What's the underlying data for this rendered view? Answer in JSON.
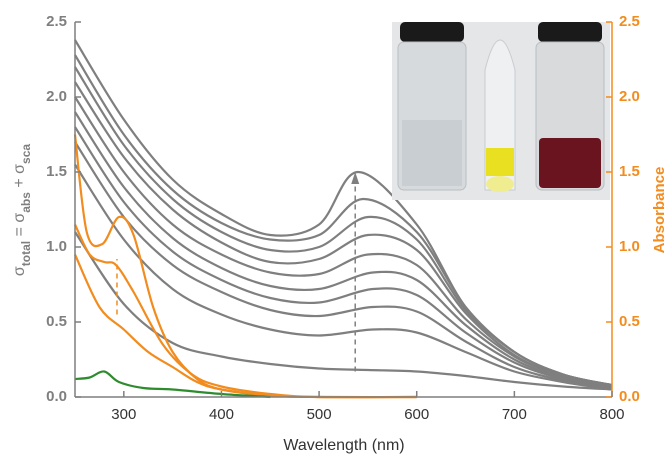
{
  "chart_data": {
    "type": "line",
    "x_label": "Wavelength (nm)",
    "y_label": [
      "σ",
      "total",
      " = σ",
      "abs",
      " + σ",
      "sca"
    ],
    "y2_label": "Absorbance",
    "xlim": [
      250,
      800
    ],
    "xticks": [
      300,
      400,
      500,
      600,
      700,
      800
    ],
    "ylim": [
      0,
      2.5
    ],
    "yticks": [
      {
        "value": 0,
        "label": "0.0"
      },
      {
        "value": 0.5,
        "label": "0.5"
      },
      {
        "value": 1,
        "label": "1.0"
      },
      {
        "value": 1.5,
        "label": "1.5"
      },
      {
        "value": 2,
        "label": "2.0"
      },
      {
        "value": 2.5,
        "label": "2.5"
      }
    ],
    "y2lim": [
      0,
      2.5
    ],
    "y2ticks": [
      {
        "value": 0,
        "label": "0.0"
      },
      {
        "value": 0.5,
        "label": "0.5"
      },
      {
        "value": 1,
        "label": "1.0"
      },
      {
        "value": 1.5,
        "label": "1.5"
      },
      {
        "value": 2,
        "label": "2.0"
      },
      {
        "value": 2.5,
        "label": "2.5"
      }
    ],
    "axis_color": "#7f7f7f",
    "y2_color": "#f28c1e",
    "series": [
      {
        "color": "#7f7f7f",
        "x": [
          250,
          300,
          350,
          400,
          450,
          500,
          540,
          600,
          650,
          700,
          750,
          800
        ],
        "values": [
          2.38,
          1.85,
          1.45,
          1.22,
          1.08,
          1.15,
          1.5,
          1.15,
          0.6,
          0.3,
          0.15,
          0.08
        ]
      },
      {
        "color": "#7f7f7f",
        "x": [
          250,
          300,
          350,
          400,
          450,
          500,
          545,
          600,
          650,
          700,
          750,
          800
        ],
        "values": [
          2.28,
          1.75,
          1.38,
          1.16,
          1.05,
          1.08,
          1.32,
          1.1,
          0.6,
          0.3,
          0.15,
          0.08
        ]
      },
      {
        "color": "#7f7f7f",
        "x": [
          250,
          300,
          350,
          400,
          450,
          500,
          550,
          600,
          650,
          700,
          750,
          800
        ],
        "values": [
          2.2,
          1.68,
          1.32,
          1.1,
          0.98,
          1.0,
          1.2,
          1.05,
          0.58,
          0.3,
          0.15,
          0.08
        ]
      },
      {
        "color": "#7f7f7f",
        "x": [
          250,
          300,
          350,
          400,
          450,
          500,
          550,
          600,
          650,
          700,
          750,
          800
        ],
        "values": [
          2.1,
          1.6,
          1.25,
          1.03,
          0.9,
          0.92,
          1.08,
          0.98,
          0.56,
          0.28,
          0.14,
          0.08
        ]
      },
      {
        "color": "#7f7f7f",
        "x": [
          250,
          300,
          350,
          400,
          450,
          500,
          550,
          600,
          650,
          700,
          750,
          800
        ],
        "values": [
          2.0,
          1.5,
          1.15,
          0.95,
          0.83,
          0.82,
          0.95,
          0.88,
          0.52,
          0.27,
          0.14,
          0.07
        ]
      },
      {
        "color": "#7f7f7f",
        "x": [
          250,
          300,
          350,
          400,
          450,
          500,
          555,
          600,
          650,
          700,
          750,
          800
        ],
        "values": [
          1.9,
          1.4,
          1.06,
          0.86,
          0.74,
          0.72,
          0.83,
          0.78,
          0.48,
          0.25,
          0.13,
          0.07
        ]
      },
      {
        "color": "#7f7f7f",
        "x": [
          250,
          300,
          350,
          400,
          450,
          500,
          555,
          600,
          650,
          700,
          750,
          800
        ],
        "values": [
          1.8,
          1.3,
          0.97,
          0.78,
          0.66,
          0.63,
          0.72,
          0.68,
          0.43,
          0.23,
          0.12,
          0.06
        ]
      },
      {
        "color": "#7f7f7f",
        "x": [
          250,
          300,
          350,
          400,
          450,
          500,
          555,
          600,
          650,
          700,
          750,
          800
        ],
        "values": [
          1.7,
          1.2,
          0.88,
          0.7,
          0.58,
          0.54,
          0.6,
          0.57,
          0.37,
          0.2,
          0.11,
          0.06
        ]
      },
      {
        "color": "#7f7f7f",
        "x": [
          250,
          300,
          350,
          400,
          450,
          500,
          555,
          600,
          650,
          700,
          750,
          800
        ],
        "values": [
          1.55,
          1.05,
          0.72,
          0.55,
          0.45,
          0.41,
          0.45,
          0.43,
          0.3,
          0.17,
          0.1,
          0.05
        ]
      },
      {
        "color": "#7f7f7f",
        "x": [
          250,
          300,
          350,
          400,
          450,
          500,
          550,
          600,
          650,
          700,
          750,
          800
        ],
        "values": [
          1.1,
          0.62,
          0.36,
          0.27,
          0.22,
          0.19,
          0.18,
          0.17,
          0.14,
          0.1,
          0.07,
          0.05
        ]
      },
      {
        "color": "#f28c1e",
        "axis": "y2",
        "x": [
          250,
          262,
          278,
          295,
          310,
          330,
          350,
          375,
          400,
          450,
          500,
          600
        ],
        "values": [
          1.75,
          1.1,
          1.02,
          1.2,
          1.08,
          0.6,
          0.3,
          0.12,
          0.05,
          0.01,
          0,
          0
        ]
      },
      {
        "color": "#f28c1e",
        "axis": "y2",
        "x": [
          250,
          265,
          280,
          292,
          310,
          340,
          370,
          400,
          450,
          500,
          600
        ],
        "values": [
          1.15,
          0.95,
          0.9,
          0.88,
          0.7,
          0.35,
          0.15,
          0.07,
          0.02,
          0,
          0
        ]
      },
      {
        "color": "#f28c1e",
        "axis": "y2",
        "x": [
          250,
          275,
          300,
          325,
          350,
          375,
          400,
          450,
          500,
          600
        ],
        "values": [
          0.95,
          0.6,
          0.45,
          0.3,
          0.2,
          0.1,
          0.05,
          0.01,
          0,
          0
        ]
      },
      {
        "color": "#2e8b2e",
        "x": [
          250,
          265,
          280,
          295,
          320,
          350,
          400,
          450
        ],
        "values": [
          0.12,
          0.13,
          0.17,
          0.1,
          0.06,
          0.05,
          0.02,
          0
        ]
      }
    ]
  }
}
